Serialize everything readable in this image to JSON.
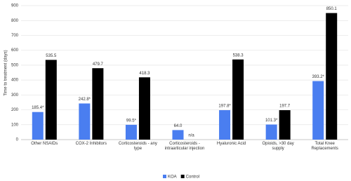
{
  "chart_data": {
    "type": "bar",
    "y_label": "Time to treatment (days)",
    "categories": [
      "Other NSAIDs",
      "COX-2 Inhibitors",
      "Corticosteroids - any type",
      "Corticosteroids - intraarticular injection",
      "Hyaluronic Acid",
      "Opioids, >30 day supply",
      "Total Knee Replacements"
    ],
    "series": [
      {
        "name": "KOA",
        "color": "#4a7ef0",
        "values": [
          185.4,
          242.8,
          99.5,
          64.0,
          197.8,
          101.3,
          393.2
        ],
        "value_labels": [
          "185.4*",
          "242.8*",
          "99.5*",
          "64.0",
          "197.8*",
          "101.3*",
          "393.2*"
        ]
      },
      {
        "name": "Control",
        "color": "#000000",
        "values": [
          535.5,
          479.7,
          418.3,
          null,
          538.3,
          197.7,
          850.1
        ],
        "value_labels": [
          "535.5",
          "479.7",
          "418.3",
          "n/a",
          "538.3",
          "197.7",
          "850.1"
        ]
      }
    ],
    "ylim": [
      0,
      900
    ],
    "yticks": [
      0,
      100,
      200,
      300,
      400,
      500,
      600,
      700,
      800,
      900
    ],
    "grid": true,
    "legend": "bottom"
  }
}
